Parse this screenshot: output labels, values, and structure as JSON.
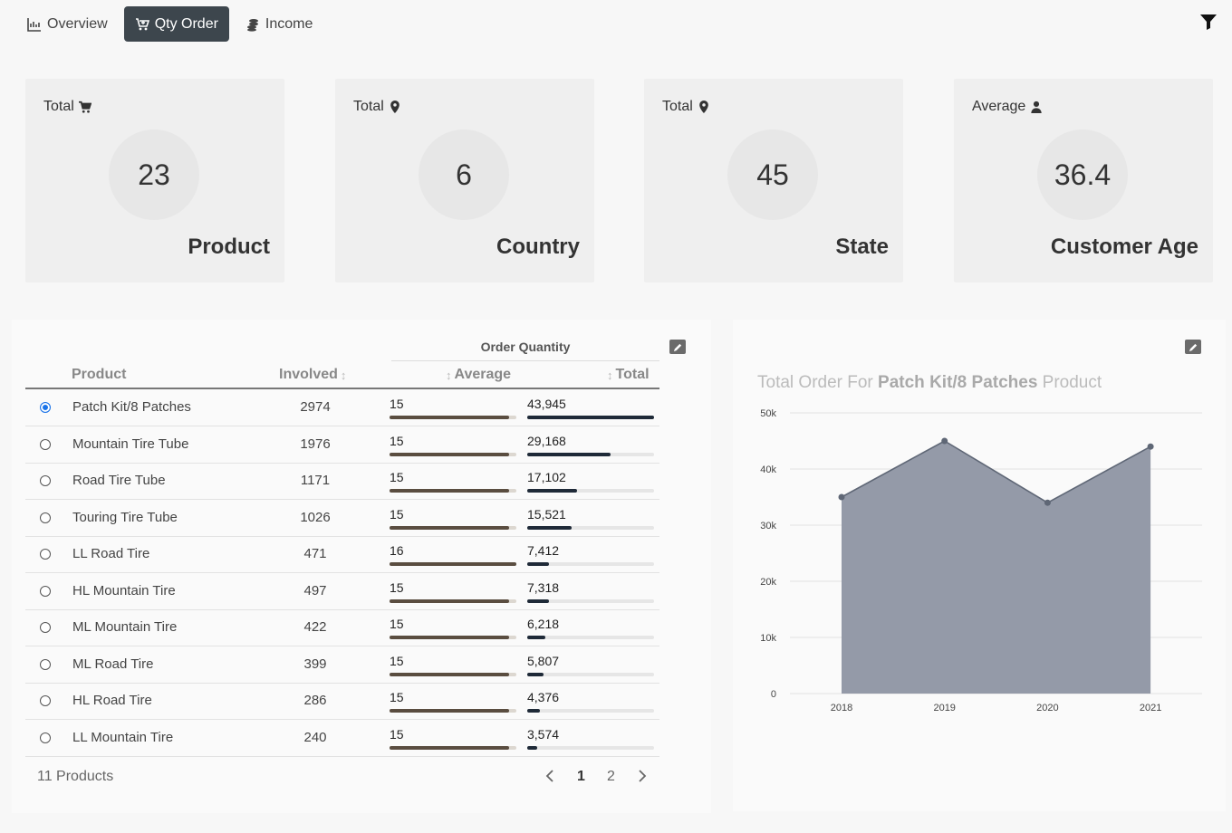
{
  "nav": {
    "tabs": [
      {
        "label": "Overview",
        "icon": "chart-line-icon"
      },
      {
        "label": "Qty Order",
        "icon": "cart-plus-icon"
      },
      {
        "label": "Income",
        "icon": "coins-icon"
      }
    ],
    "active_tab": "Qty Order"
  },
  "cards": [
    {
      "label": "Total",
      "icon": "cart-icon",
      "value": "23",
      "name": "Product"
    },
    {
      "label": "Total",
      "icon": "map-pin-icon",
      "value": "6",
      "name": "Country"
    },
    {
      "label": "Total",
      "icon": "map-pin-icon",
      "value": "45",
      "name": "State"
    },
    {
      "label": "Average",
      "icon": "user-icon",
      "value": "36.4",
      "name": "Customer Age"
    }
  ],
  "table": {
    "group_header": "Order Quantity",
    "columns": {
      "product": "Product",
      "involved": "Involved",
      "average": "Average",
      "total": "Total"
    },
    "rows": [
      {
        "product": "Patch Kit/8 Patches",
        "involved": "2974",
        "average": "15",
        "average_ratio": 0.94,
        "total": "43,945",
        "total_ratio": 1.0,
        "selected": true
      },
      {
        "product": "Mountain Tire Tube",
        "involved": "1976",
        "average": "15",
        "average_ratio": 0.94,
        "total": "29,168",
        "total_ratio": 0.66,
        "selected": false
      },
      {
        "product": "Road Tire Tube",
        "involved": "1171",
        "average": "15",
        "average_ratio": 0.94,
        "total": "17,102",
        "total_ratio": 0.39,
        "selected": false
      },
      {
        "product": "Touring Tire Tube",
        "involved": "1026",
        "average": "15",
        "average_ratio": 0.94,
        "total": "15,521",
        "total_ratio": 0.35,
        "selected": false
      },
      {
        "product": "LL Road Tire",
        "involved": "471",
        "average": "16",
        "average_ratio": 1.0,
        "total": "7,412",
        "total_ratio": 0.17,
        "selected": false
      },
      {
        "product": "HL Mountain Tire",
        "involved": "497",
        "average": "15",
        "average_ratio": 0.94,
        "total": "7,318",
        "total_ratio": 0.17,
        "selected": false
      },
      {
        "product": "ML Mountain Tire",
        "involved": "422",
        "average": "15",
        "average_ratio": 0.94,
        "total": "6,218",
        "total_ratio": 0.14,
        "selected": false
      },
      {
        "product": "ML Road Tire",
        "involved": "399",
        "average": "15",
        "average_ratio": 0.94,
        "total": "5,807",
        "total_ratio": 0.13,
        "selected": false
      },
      {
        "product": "HL Road Tire",
        "involved": "286",
        "average": "15",
        "average_ratio": 0.94,
        "total": "4,376",
        "total_ratio": 0.1,
        "selected": false
      },
      {
        "product": "LL Mountain Tire",
        "involved": "240",
        "average": "15",
        "average_ratio": 0.94,
        "total": "3,574",
        "total_ratio": 0.08,
        "selected": false
      }
    ],
    "footer_count": "11 Products",
    "pages": [
      "1",
      "2"
    ],
    "current_page": "1"
  },
  "chart": {
    "title_prefix": "Total Order For",
    "title_product": "Patch Kit/8 Patches",
    "title_suffix": "Product"
  },
  "chart_data": {
    "type": "area",
    "title": "Total Order For Patch Kit/8 Patches Product",
    "x": [
      "2018",
      "2019",
      "2020",
      "2021"
    ],
    "series": [
      {
        "values": [
          35000,
          45000,
          34000,
          44000
        ]
      }
    ],
    "ylim": [
      0,
      50000
    ],
    "yticks": [
      "0",
      "10k",
      "20k",
      "30k",
      "40k",
      "50k"
    ],
    "grid": true,
    "colors": {
      "fill": "#8e95a3",
      "line": "#5f6776"
    }
  }
}
